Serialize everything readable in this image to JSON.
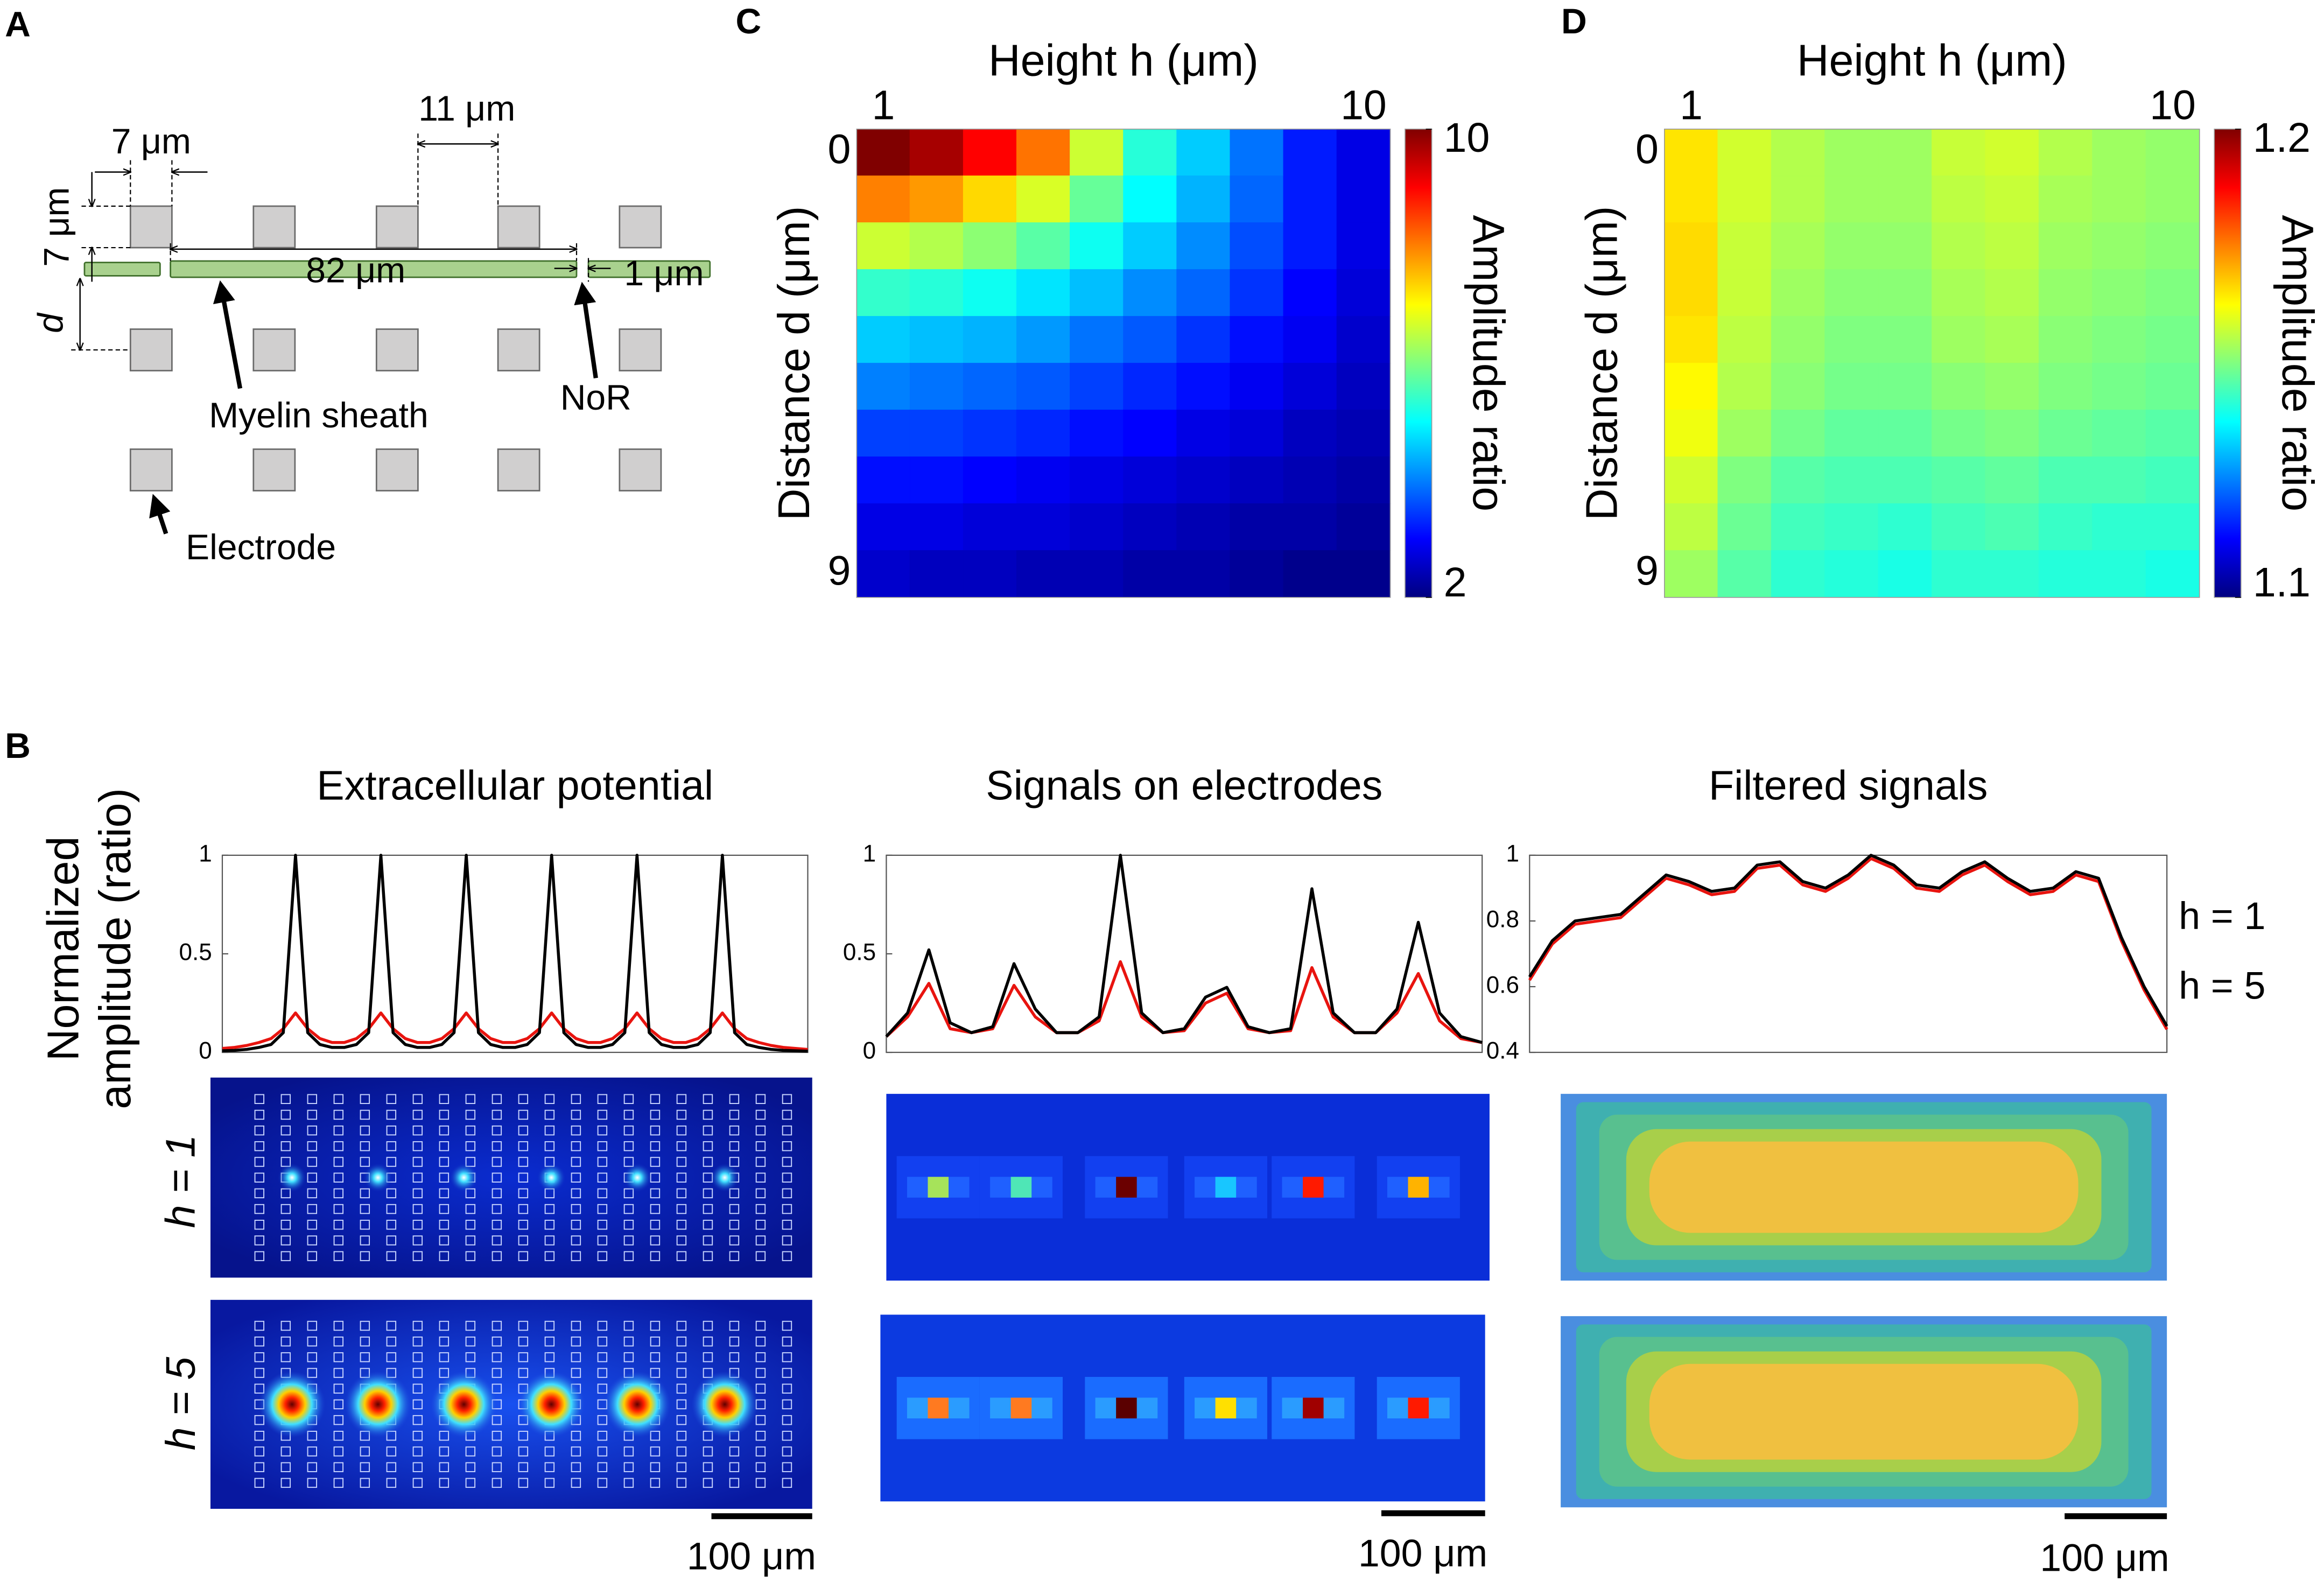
{
  "diagram": {
    "label": "A",
    "dimensions": {
      "gap": "7 μm",
      "pitch": "11 μm",
      "size": "7 μm",
      "internode": "82 μm",
      "node": "1 μm",
      "distance": "d"
    },
    "labels": {
      "myelin": "Myelin sheath",
      "node": "NoR",
      "electrode": "Electrode"
    }
  },
  "panel_b": {
    "label": "B",
    "ylabel": [
      "Normalized",
      "amplitude (ratio)"
    ],
    "row_labels": [
      "h = 1",
      "h = 5"
    ],
    "scale_bars": [
      "100 μm",
      "100 μm",
      "100 μm"
    ]
  },
  "chart_data": [
    {
      "type": "heatmap",
      "label": "C",
      "xlabel": "Height h (μm)",
      "ylabel": "Distance d (μm)",
      "colorbar_label": "Amplitude ratio",
      "colormap": "jet",
      "x": [
        1,
        2,
        3,
        4,
        5,
        6,
        7,
        8,
        9,
        10
      ],
      "y": [
        0,
        1,
        2,
        3,
        4,
        5,
        6,
        7,
        8,
        9
      ],
      "xlim": [
        0.5,
        10.5
      ],
      "xticks": [
        1,
        10
      ],
      "ylim": [
        -0.5,
        9.5
      ],
      "yticks": [
        0,
        9
      ],
      "clim": [
        2,
        10
      ],
      "cticks": [
        2,
        10
      ],
      "values": [
        [
          10,
          9.7,
          9,
          8.1,
          6.6,
          5.3,
          4.6,
          3.9,
          3.2,
          2.8
        ],
        [
          8,
          7.8,
          7.3,
          6.7,
          5.8,
          5,
          4.4,
          3.8,
          3.2,
          2.8
        ],
        [
          6.6,
          6.4,
          6.1,
          5.7,
          5.1,
          4.6,
          4.1,
          3.6,
          3.2,
          2.8
        ],
        [
          5.4,
          5.3,
          5.1,
          4.8,
          4.5,
          4.1,
          3.8,
          3.4,
          3.0,
          2.7
        ],
        [
          4.6,
          4.5,
          4.4,
          4.2,
          3.9,
          3.7,
          3.4,
          3.1,
          2.9,
          2.6
        ],
        [
          4.0,
          3.9,
          3.8,
          3.7,
          3.5,
          3.3,
          3.1,
          2.9,
          2.7,
          2.5
        ],
        [
          3.5,
          3.5,
          3.4,
          3.3,
          3.1,
          3.0,
          2.8,
          2.7,
          2.5,
          2.4
        ],
        [
          3.1,
          3.1,
          3.0,
          2.9,
          2.8,
          2.7,
          2.6,
          2.5,
          2.4,
          2.3
        ],
        [
          2.8,
          2.8,
          2.7,
          2.7,
          2.6,
          2.5,
          2.4,
          2.3,
          2.3,
          2.2
        ],
        [
          2.6,
          2.5,
          2.5,
          2.4,
          2.4,
          2.3,
          2.3,
          2.2,
          2.1,
          2.1
        ]
      ]
    },
    {
      "type": "heatmap",
      "label": "D",
      "xlabel": "Height h (μm)",
      "ylabel": "Distance d (μm)",
      "colorbar_label": "Amplitude ratio",
      "colormap": "jet",
      "x": [
        1,
        2,
        3,
        4,
        5,
        6,
        7,
        8,
        9,
        10
      ],
      "y": [
        0,
        1,
        2,
        3,
        4,
        5,
        6,
        7,
        8,
        9
      ],
      "xlim": [
        0.5,
        10.5
      ],
      "xticks": [
        1,
        10
      ],
      "ylim": [
        -0.5,
        9.5
      ],
      "yticks": [
        0,
        9
      ],
      "clim": [
        1.1,
        1.2
      ],
      "cticks": [
        1.1,
        1.2
      ],
      "values": [
        [
          1.165,
          1.158,
          1.155,
          1.153,
          1.153,
          1.157,
          1.158,
          1.155,
          1.153,
          1.152
        ],
        [
          1.165,
          1.158,
          1.155,
          1.153,
          1.153,
          1.156,
          1.157,
          1.154,
          1.153,
          1.152
        ],
        [
          1.166,
          1.157,
          1.154,
          1.152,
          1.152,
          1.155,
          1.156,
          1.153,
          1.152,
          1.151
        ],
        [
          1.166,
          1.157,
          1.153,
          1.151,
          1.151,
          1.154,
          1.155,
          1.152,
          1.151,
          1.15
        ],
        [
          1.165,
          1.156,
          1.152,
          1.15,
          1.15,
          1.153,
          1.154,
          1.151,
          1.15,
          1.149
        ],
        [
          1.163,
          1.155,
          1.151,
          1.149,
          1.149,
          1.151,
          1.152,
          1.15,
          1.149,
          1.148
        ],
        [
          1.161,
          1.153,
          1.149,
          1.147,
          1.147,
          1.149,
          1.15,
          1.148,
          1.147,
          1.146
        ],
        [
          1.158,
          1.15,
          1.146,
          1.145,
          1.145,
          1.146,
          1.147,
          1.145,
          1.145,
          1.144
        ],
        [
          1.156,
          1.148,
          1.144,
          1.143,
          1.142,
          1.144,
          1.145,
          1.143,
          1.142,
          1.142
        ],
        [
          1.153,
          1.146,
          1.142,
          1.141,
          1.14,
          1.142,
          1.142,
          1.141,
          1.141,
          1.14
        ]
      ]
    },
    {
      "type": "line",
      "title": "Extracellular potential",
      "ylim": [
        0,
        1
      ],
      "yticks": [
        0,
        0.5,
        1
      ],
      "series": [
        {
          "color": "#000000",
          "values": [
            0.008,
            0.01,
            0.015,
            0.025,
            0.04,
            0.1,
            1,
            0.1,
            0.04,
            0.025,
            0.025,
            0.04,
            0.1,
            1,
            0.1,
            0.04,
            0.025,
            0.025,
            0.04,
            0.1,
            1,
            0.1,
            0.04,
            0.025,
            0.025,
            0.04,
            0.1,
            1,
            0.1,
            0.04,
            0.025,
            0.025,
            0.04,
            0.1,
            1,
            0.1,
            0.04,
            0.025,
            0.025,
            0.04,
            0.1,
            1,
            0.1,
            0.04,
            0.025,
            0.015,
            0.01,
            0.008,
            0.006
          ]
        },
        {
          "color": "#e8140f",
          "values": [
            0.02,
            0.025,
            0.035,
            0.05,
            0.07,
            0.12,
            0.2,
            0.12,
            0.07,
            0.05,
            0.05,
            0.07,
            0.12,
            0.2,
            0.12,
            0.07,
            0.05,
            0.05,
            0.07,
            0.12,
            0.2,
            0.12,
            0.07,
            0.05,
            0.05,
            0.07,
            0.12,
            0.2,
            0.12,
            0.07,
            0.05,
            0.05,
            0.07,
            0.12,
            0.2,
            0.12,
            0.07,
            0.05,
            0.05,
            0.07,
            0.12,
            0.2,
            0.12,
            0.07,
            0.05,
            0.035,
            0.025,
            0.02,
            0.015
          ]
        }
      ]
    },
    {
      "type": "line",
      "title": "Signals on electrodes",
      "ylim": [
        0,
        1
      ],
      "yticks": [
        0,
        0.5,
        1
      ],
      "series": [
        {
          "color": "#000000",
          "values": [
            0.08,
            0.2,
            0.52,
            0.15,
            0.1,
            0.13,
            0.45,
            0.22,
            0.1,
            0.1,
            0.18,
            1.0,
            0.2,
            0.1,
            0.12,
            0.28,
            0.33,
            0.13,
            0.1,
            0.12,
            0.83,
            0.2,
            0.1,
            0.1,
            0.22,
            0.66,
            0.2,
            0.08,
            0.05
          ]
        },
        {
          "color": "#e8140f",
          "values": [
            0.08,
            0.18,
            0.35,
            0.12,
            0.1,
            0.12,
            0.34,
            0.18,
            0.1,
            0.1,
            0.16,
            0.46,
            0.18,
            0.1,
            0.11,
            0.25,
            0.3,
            0.12,
            0.1,
            0.11,
            0.43,
            0.18,
            0.1,
            0.1,
            0.2,
            0.4,
            0.16,
            0.07,
            0.05
          ]
        }
      ]
    },
    {
      "type": "line",
      "title": "Filtered signals",
      "ylim": [
        0.4,
        1
      ],
      "yticks": [
        0.4,
        0.6,
        0.8,
        1
      ],
      "legend": "right",
      "series": [
        {
          "name": "h = 1",
          "color": "#000000",
          "values": [
            0.63,
            0.74,
            0.8,
            0.81,
            0.82,
            0.88,
            0.94,
            0.92,
            0.89,
            0.9,
            0.97,
            0.98,
            0.92,
            0.9,
            0.94,
            1.0,
            0.97,
            0.91,
            0.9,
            0.95,
            0.98,
            0.93,
            0.89,
            0.9,
            0.95,
            0.93,
            0.75,
            0.6,
            0.48
          ]
        },
        {
          "name": "h = 5",
          "color": "#e8140f",
          "values": [
            0.62,
            0.73,
            0.79,
            0.8,
            0.81,
            0.87,
            0.93,
            0.91,
            0.88,
            0.89,
            0.96,
            0.97,
            0.91,
            0.89,
            0.93,
            0.99,
            0.96,
            0.9,
            0.89,
            0.94,
            0.97,
            0.92,
            0.88,
            0.89,
            0.94,
            0.92,
            0.74,
            0.59,
            0.47
          ]
        }
      ]
    }
  ]
}
